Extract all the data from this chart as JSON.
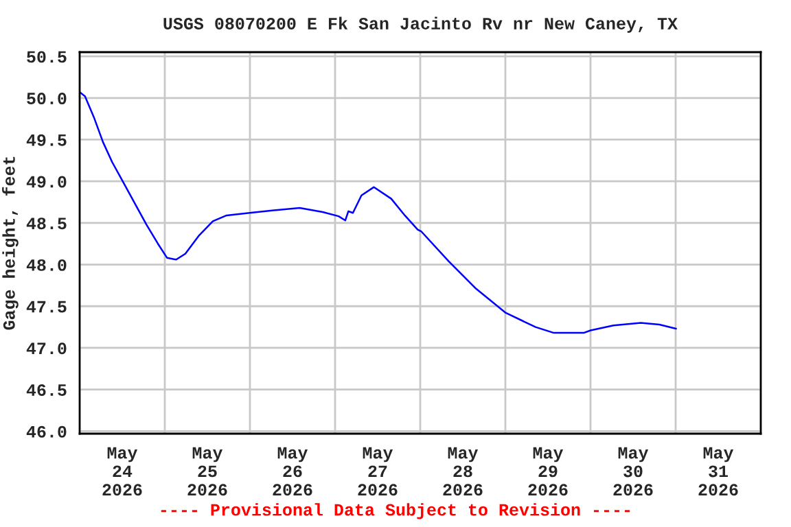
{
  "chart_data": {
    "type": "line",
    "title": "USGS 08070200 E Fk San Jacinto Rv nr New Caney, TX",
    "ylabel": "Gage height, feet",
    "x": [
      "2026-05-24T00:00",
      "2026-05-24T01:30",
      "2026-05-24T04:00",
      "2026-05-24T06:35",
      "2026-05-24T09:10",
      "2026-05-24T12:24",
      "2026-05-24T15:36",
      "2026-05-24T18:50",
      "2026-05-24T22:04",
      "2026-05-25T00:39",
      "2026-05-25T03:13",
      "2026-05-25T05:48",
      "2026-05-25T09:40",
      "2026-05-25T13:33",
      "2026-05-25T17:25",
      "2026-05-25T23:53",
      "2026-05-26T06:15",
      "2026-05-26T14:02",
      "2026-05-26T20:31",
      "2026-05-27T01:00",
      "2026-05-27T02:53",
      "2026-05-27T03:45",
      "2026-05-27T05:02",
      "2026-05-27T07:26",
      "2026-05-27T10:57",
      "2026-05-27T15:50",
      "2026-05-27T19:40",
      "2026-05-27T23:17",
      "2026-05-28T00:15",
      "2026-05-28T08:00",
      "2026-05-28T15:45",
      "2026-05-29T00:07",
      "2026-05-29T08:31",
      "2026-05-29T13:40",
      "2026-05-29T22:05",
      "2026-05-30T00:00",
      "2026-05-30T06:28",
      "2026-05-30T14:10",
      "2026-05-30T19:25",
      "2026-05-31T00:07"
    ],
    "series": [
      {
        "color": "#0000ff",
        "values": [
          50.07,
          50.02,
          49.77,
          49.47,
          49.23,
          48.98,
          48.73,
          48.48,
          48.25,
          48.08,
          48.06,
          48.13,
          48.35,
          48.52,
          48.59,
          48.62,
          48.65,
          48.68,
          48.63,
          48.58,
          48.53,
          48.64,
          48.62,
          48.83,
          48.93,
          48.79,
          48.59,
          48.42,
          48.4,
          48.04,
          47.71,
          47.42,
          47.25,
          47.18,
          47.18,
          47.21,
          47.27,
          47.3,
          47.28,
          47.23
        ]
      }
    ],
    "xlim": [
      "2026-05-24T00:00",
      "2026-06-01T00:00"
    ],
    "xticks": [
      {
        "value": "2026-05-24T00:00",
        "label": null
      },
      {
        "value": "2026-05-24T12:00",
        "label": "May\n24\n2026"
      },
      {
        "value": "2026-05-25T00:00",
        "label": null
      },
      {
        "value": "2026-05-25T12:00",
        "label": "May\n25\n2026"
      },
      {
        "value": "2026-05-26T00:00",
        "label": null
      },
      {
        "value": "2026-05-26T12:00",
        "label": "May\n26\n2026"
      },
      {
        "value": "2026-05-27T00:00",
        "label": null
      },
      {
        "value": "2026-05-27T12:00",
        "label": "May\n27\n2026"
      },
      {
        "value": "2026-05-28T00:00",
        "label": null
      },
      {
        "value": "2026-05-28T12:00",
        "label": "May\n28\n2026"
      },
      {
        "value": "2026-05-29T00:00",
        "label": null
      },
      {
        "value": "2026-05-29T12:00",
        "label": "May\n29\n2026"
      },
      {
        "value": "2026-05-30T00:00",
        "label": null
      },
      {
        "value": "2026-05-30T12:00",
        "label": "May\n30\n2026"
      },
      {
        "value": "2026-05-31T00:00",
        "label": null
      },
      {
        "value": "2026-05-31T12:00",
        "label": "May\n31\n2026"
      },
      {
        "value": "2026-06-01T00:00",
        "label": null
      }
    ],
    "ylim": [
      45.97,
      50.55
    ],
    "yticks": [
      {
        "value": 46,
        "label": "46.0"
      },
      46.5,
      {
        "value": 47,
        "label": "47.0"
      },
      47.5,
      {
        "value": 48,
        "label": "48.0"
      },
      48.5,
      {
        "value": 49,
        "label": "49.0"
      },
      49.5,
      {
        "value": 50,
        "label": "50.0"
      },
      50.5
    ],
    "grid": true,
    "marker": "none",
    "line_style": "solid",
    "annotations": [
      "---- Provisional Data Subject to Revision ----"
    ]
  }
}
